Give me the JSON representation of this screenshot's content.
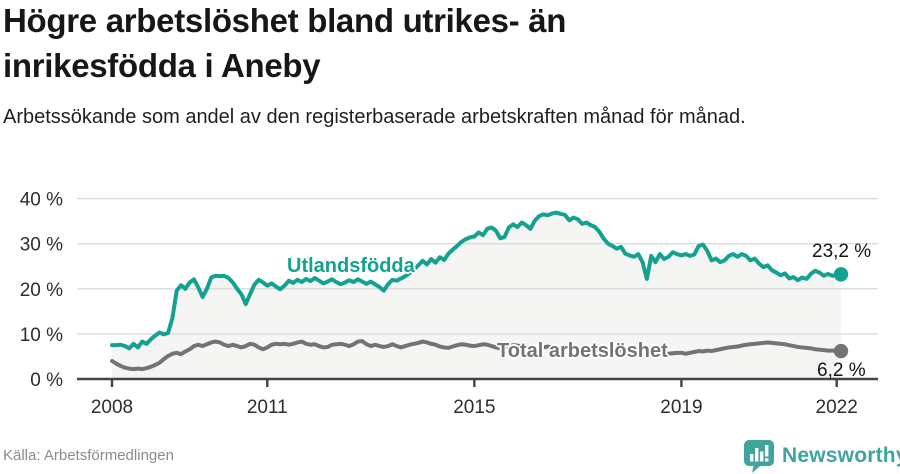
{
  "header": {
    "title_lines": [
      "Högre arbetslöshet bland utrikes- än",
      "inrikesfödda i Aneby"
    ],
    "subtitle": "Arbetssökande som andel av den registerbaserade arbetskraften månad för månad."
  },
  "colors": {
    "accent_teal": "#15A191",
    "line_gray": "#737377",
    "grid": "#DBDBDB",
    "axis": "#444444",
    "area_fill": "#F5F5F4",
    "end_label_text": "#141414",
    "brand_teal": "#3FA49E"
  },
  "chart_data": {
    "type": "line",
    "title": "Högre arbetslöshet bland utrikes- än inrikesfödda i Aneby",
    "subtitle": "Arbetssökande som andel av den registerbaserade arbetskraften månad för månad.",
    "x_unit": "month",
    "x_start_year": 2008,
    "x_end_label": "2022",
    "x_ticks": [
      2008,
      2011,
      2015,
      2019,
      2022
    ],
    "y_ticks": [
      0,
      10,
      20,
      30,
      40
    ],
    "y_tick_suffix": " %",
    "ylim": [
      0,
      42
    ],
    "grid": true,
    "legend_position": "inline-labels",
    "series": [
      {
        "name": "Utlandsfödda",
        "color": "#15A191",
        "end_label": "23,2 %",
        "end_value": 23.2,
        "values": [
          7.5,
          7.5,
          7.6,
          7.3,
          6.8,
          7.8,
          7.0,
          8.3,
          7.8,
          8.8,
          9.6,
          10.3,
          9.9,
          10.2,
          13.5,
          19.6,
          20.8,
          20.0,
          21.4,
          22.1,
          20.3,
          18.2,
          20.0,
          22.5,
          22.9,
          22.8,
          22.9,
          22.4,
          21.4,
          20.0,
          18.8,
          16.6,
          18.8,
          20.9,
          22.0,
          21.4,
          20.7,
          21.2,
          20.5,
          19.9,
          20.7,
          21.8,
          21.3,
          22.0,
          21.5,
          22.2,
          21.7,
          22.4,
          21.8,
          21.2,
          21.6,
          22.1,
          21.5,
          21.0,
          21.4,
          21.9,
          21.5,
          22.1,
          21.6,
          21.1,
          21.6,
          21.0,
          20.4,
          19.6,
          21.0,
          22.0,
          21.8,
          22.3,
          22.8,
          23.5,
          24.3,
          25.2,
          26.2,
          25.4,
          26.6,
          25.8,
          27.0,
          26.4,
          27.8,
          28.7,
          29.5,
          30.4,
          31.0,
          31.4,
          31.6,
          32.5,
          31.9,
          33.3,
          33.6,
          32.9,
          31.2,
          31.5,
          33.6,
          34.3,
          33.7,
          34.7,
          34.1,
          33.3,
          35.1,
          36.1,
          36.5,
          36.3,
          36.7,
          36.9,
          36.6,
          36.4,
          35.2,
          35.8,
          35.4,
          34.4,
          34.7,
          34.1,
          33.7,
          32.6,
          31.1,
          30.0,
          29.5,
          28.9,
          29.3,
          27.8,
          27.4,
          27.1,
          27.7,
          25.9,
          22.2,
          27.3,
          25.9,
          27.7,
          26.6,
          27.1,
          28.1,
          27.7,
          27.4,
          27.7,
          27.3,
          27.6,
          29.5,
          29.8,
          28.4,
          26.3,
          26.7,
          25.9,
          26.3,
          27.3,
          27.7,
          27.1,
          27.7,
          27.3,
          26.3,
          26.7,
          25.6,
          24.8,
          25.2,
          24.1,
          23.6,
          23.0,
          23.4,
          22.3,
          22.6,
          21.9,
          22.5,
          22.2,
          23.3,
          24.0,
          23.6,
          22.9,
          23.3,
          22.9,
          23.0,
          23.2
        ]
      },
      {
        "name": "Total arbetslöshet",
        "color": "#737377",
        "end_label": "6,2 %",
        "end_value": 6.2,
        "values": [
          4.0,
          3.4,
          2.9,
          2.5,
          2.3,
          2.2,
          2.3,
          2.2,
          2.4,
          2.7,
          3.1,
          3.6,
          4.4,
          5.1,
          5.6,
          5.8,
          5.5,
          6.1,
          6.6,
          7.3,
          7.6,
          7.3,
          7.7,
          8.1,
          8.3,
          8.1,
          7.6,
          7.3,
          7.6,
          7.3,
          7.0,
          7.3,
          7.8,
          7.6,
          7.0,
          6.6,
          7.0,
          7.6,
          7.8,
          7.7,
          7.8,
          7.6,
          7.8,
          8.1,
          8.3,
          7.8,
          7.6,
          7.7,
          7.3,
          7.0,
          7.1,
          7.6,
          7.7,
          7.8,
          7.6,
          7.3,
          7.7,
          8.3,
          8.4,
          7.7,
          7.3,
          7.6,
          7.3,
          7.1,
          7.3,
          7.7,
          7.3,
          7.0,
          7.3,
          7.6,
          7.8,
          8.0,
          8.3,
          8.1,
          7.8,
          7.6,
          7.2,
          7.0,
          6.9,
          7.2,
          7.5,
          7.7,
          7.6,
          7.4,
          7.3,
          7.5,
          7.7,
          7.6,
          7.3,
          7.0,
          6.8,
          7.0,
          7.3,
          7.5,
          7.4,
          7.2,
          7.0,
          6.8,
          6.6,
          6.8,
          7.0,
          7.2,
          7.0,
          6.8,
          6.6,
          6.8,
          7.0,
          6.8,
          6.6,
          6.4,
          6.6,
          6.8,
          6.6,
          6.4,
          6.2,
          6.0,
          6.2,
          6.4,
          6.2,
          6.0,
          5.9,
          5.8,
          5.7,
          5.6,
          5.5,
          5.6,
          5.7,
          5.6,
          5.5,
          5.6,
          5.7,
          5.8,
          5.8,
          5.6,
          5.8,
          6.0,
          6.2,
          6.1,
          6.3,
          6.2,
          6.4,
          6.6,
          6.8,
          7.0,
          7.1,
          7.2,
          7.4,
          7.6,
          7.7,
          7.8,
          7.9,
          8.0,
          8.1,
          8.0,
          7.9,
          7.8,
          7.7,
          7.5,
          7.3,
          7.1,
          7.0,
          6.9,
          6.8,
          6.6,
          6.5,
          6.4,
          6.3,
          6.3,
          6.2,
          6.2
        ]
      }
    ]
  },
  "footer": {
    "source": "Källa: Arbetsförmedlingen",
    "brand_name": "Newsworthy"
  }
}
